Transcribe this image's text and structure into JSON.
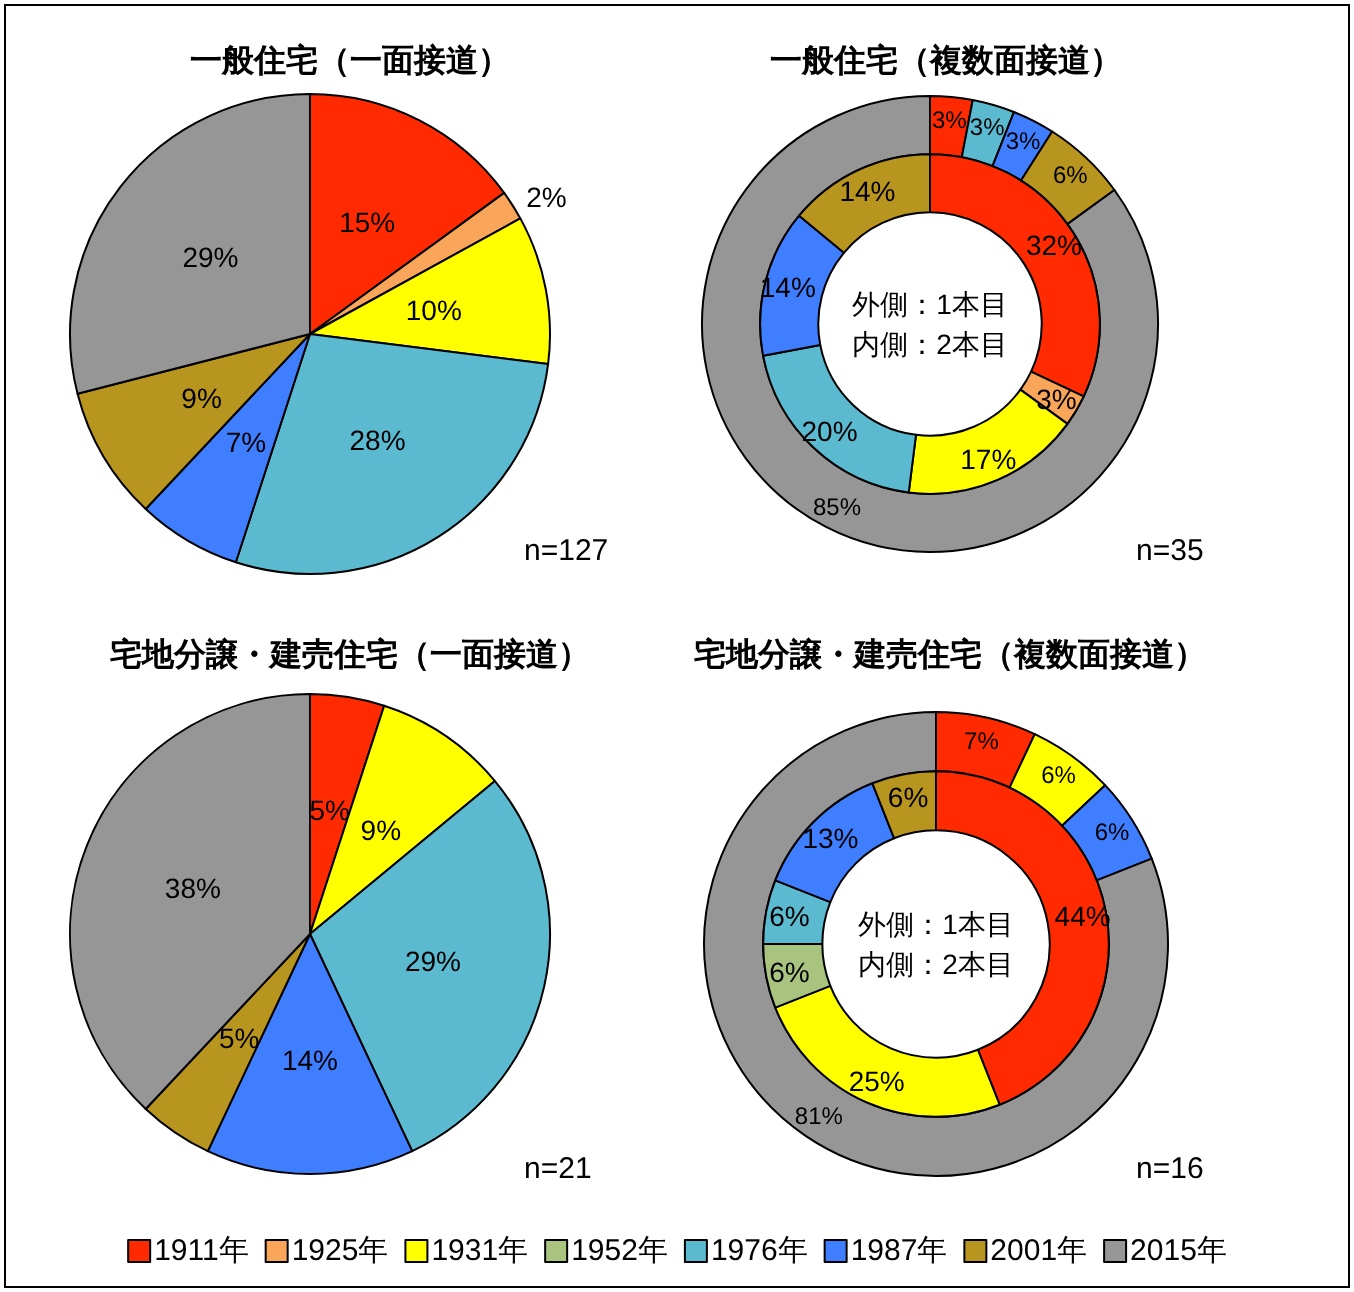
{
  "chart_data": [
    {
      "type": "pie",
      "title": "一般住宅（一面接道）",
      "colors": [
        "#ff2a00",
        "#f9a65a",
        "#ffff00",
        "#a9c47f",
        "#5bbad0",
        "#3f7fff",
        "#b8951e",
        "#969696"
      ],
      "values": [
        15,
        2,
        10,
        null,
        28,
        7,
        9,
        29
      ],
      "value_labels": [
        "15%",
        "2%",
        "10%",
        null,
        "28%",
        "7%",
        "9%",
        "29%"
      ],
      "annotations": [
        "n=127"
      ],
      "legend": false
    },
    {
      "type": "donut",
      "title": "一般住宅（複数面接道）",
      "colors": [
        "#ff2a00",
        "#f9a65a",
        "#ffff00",
        "#a9c47f",
        "#5bbad0",
        "#3f7fff",
        "#b8951e",
        "#969696"
      ],
      "series": [
        {
          "values": [
            3,
            null,
            null,
            null,
            3,
            3,
            6,
            85
          ],
          "value_labels": [
            "3%",
            null,
            null,
            null,
            "3%",
            "3%",
            "6%",
            "85%"
          ]
        },
        {
          "values": [
            32,
            3,
            17,
            null,
            20,
            14,
            14,
            null
          ],
          "value_labels": [
            "32%",
            "3%",
            "17%",
            null,
            "20%",
            "14%",
            "14%",
            null
          ]
        }
      ],
      "annotations": [
        "外側：1本目",
        "内側：2本目",
        "n=35"
      ],
      "legend": false
    },
    {
      "type": "pie",
      "title": "宅地分譲・建売住宅（一面接道）",
      "colors": [
        "#ff2a00",
        "#f9a65a",
        "#ffff00",
        "#a9c47f",
        "#5bbad0",
        "#3f7fff",
        "#b8951e",
        "#969696"
      ],
      "values": [
        5,
        null,
        9,
        null,
        29,
        14,
        5,
        38
      ],
      "value_labels": [
        "5%",
        null,
        "9%",
        null,
        "29%",
        "14%",
        "5%",
        "38%"
      ],
      "annotations": [
        "n=21"
      ],
      "legend": false
    },
    {
      "type": "donut",
      "title": "宅地分譲・建売住宅（複数面接道）",
      "categories": [
        "1911年",
        "1925年",
        "1931年",
        "1952年",
        "1976年",
        "1987年",
        "2001年",
        "2015年"
      ],
      "colors": [
        "#ff2a00",
        "#f9a65a",
        "#ffff00",
        "#a9c47f",
        "#5bbad0",
        "#3f7fff",
        "#b8951e",
        "#969696"
      ],
      "series": [
        {
          "values": [
            7,
            null,
            6,
            null,
            null,
            6,
            null,
            81
          ],
          "value_labels": [
            "7%",
            null,
            "6%",
            null,
            null,
            "6%",
            null,
            "81%"
          ]
        },
        {
          "values": [
            44,
            null,
            25,
            6,
            6,
            13,
            6,
            null
          ],
          "value_labels": [
            "44%",
            null,
            "25%",
            "6%",
            "6%",
            "13%",
            "6%",
            null
          ]
        }
      ],
      "annotations": [
        "外側：1本目",
        "内側：2本目",
        "n=16"
      ],
      "legend": "bottom"
    }
  ]
}
